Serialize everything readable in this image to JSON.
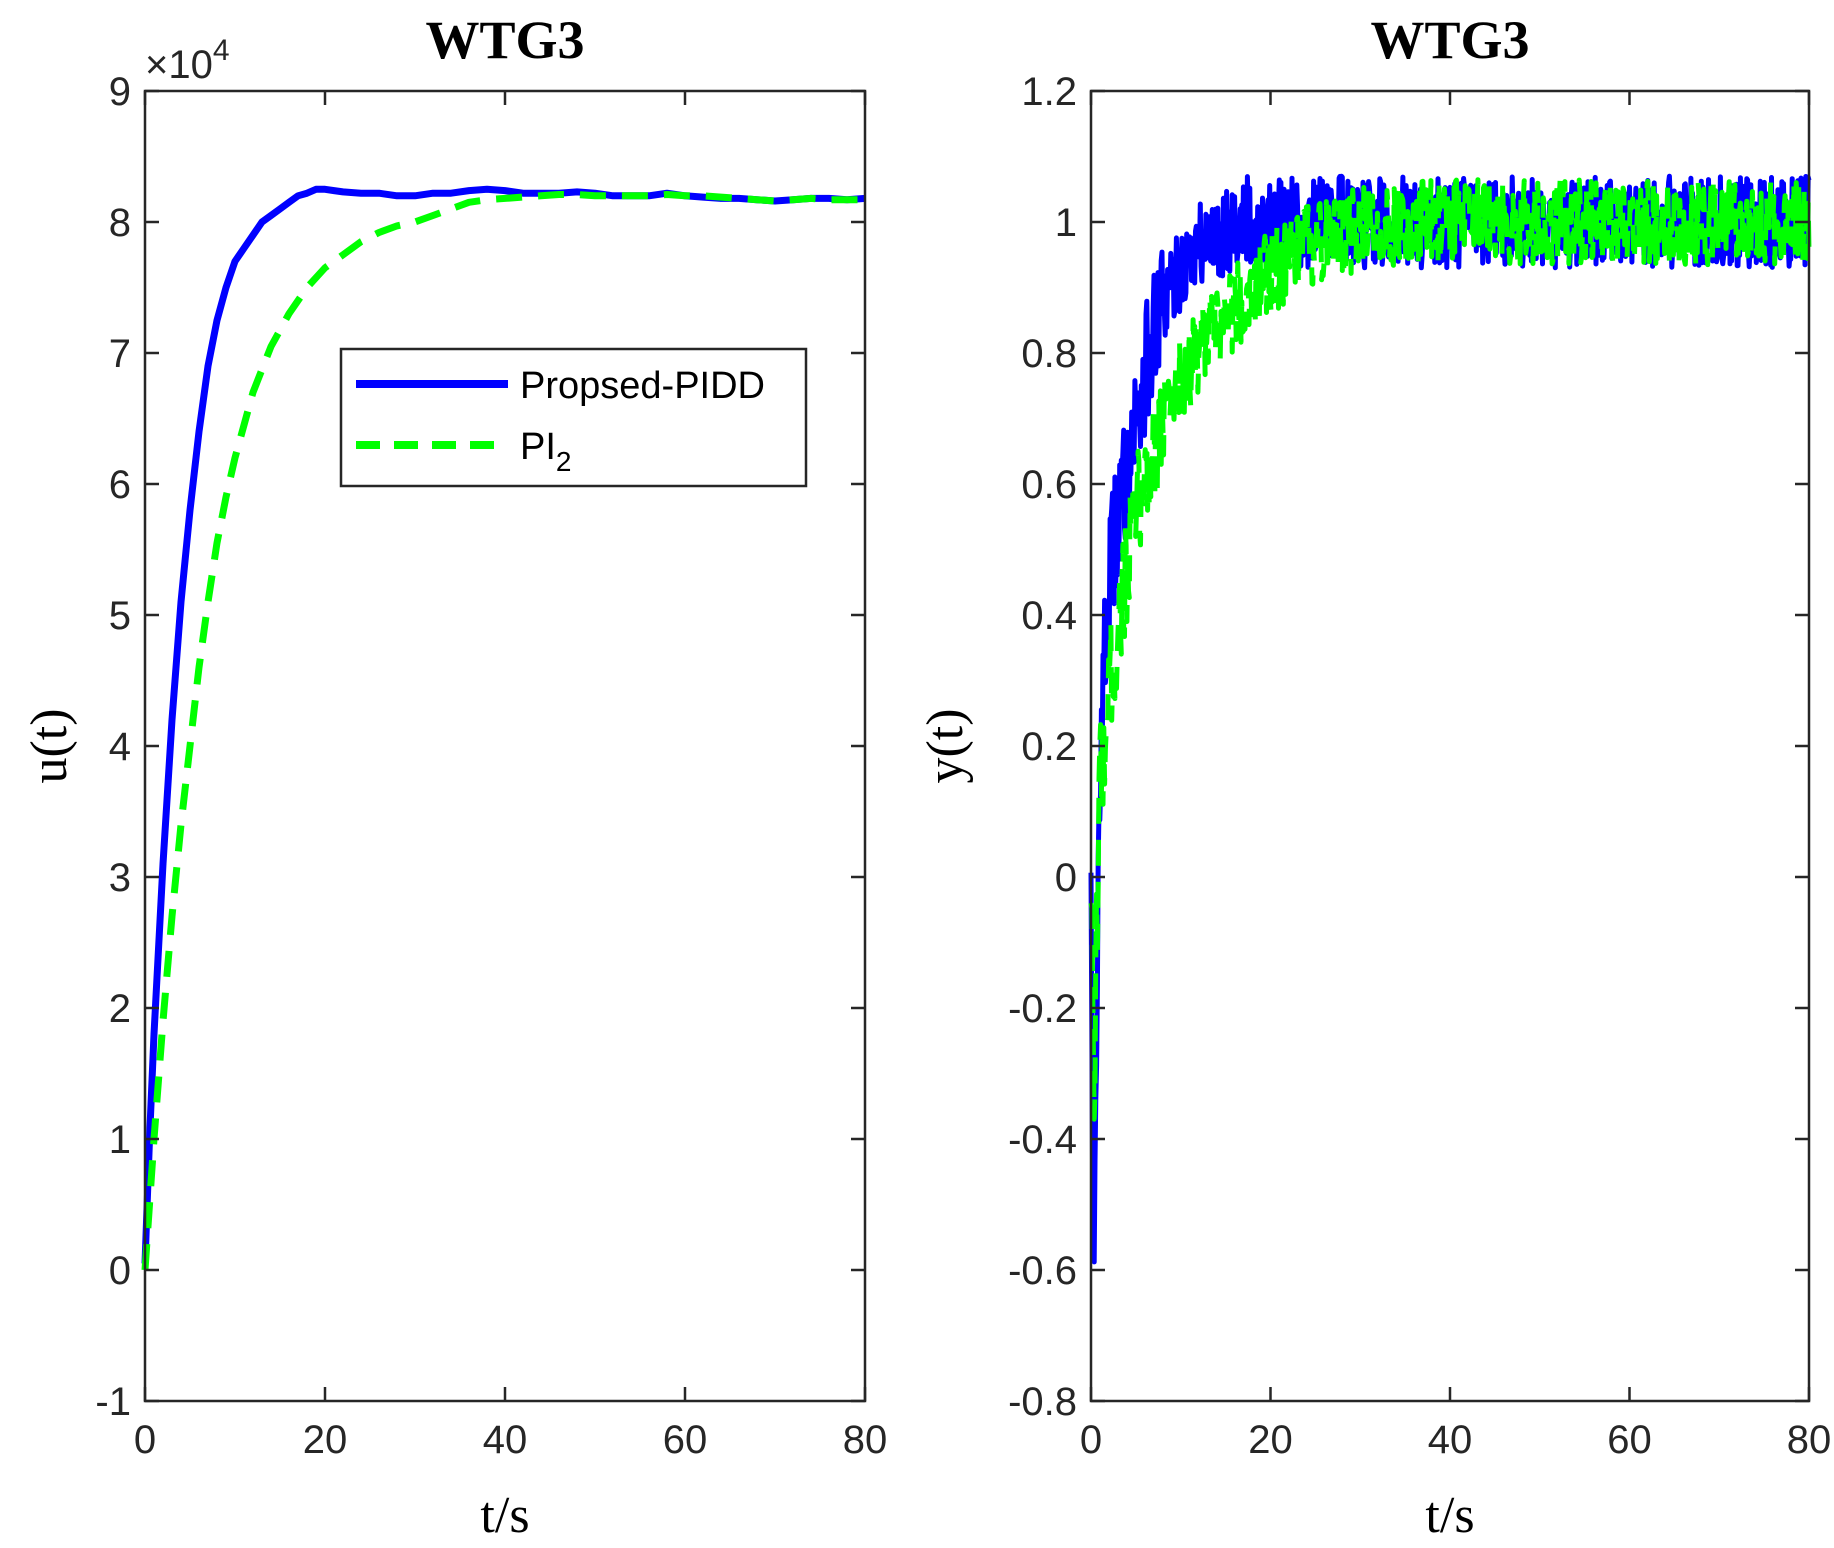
{
  "chart_data": [
    {
      "type": "line",
      "title": "WTG3",
      "xlabel": "t/s",
      "ylabel": "u(t)",
      "xlim": [
        0,
        80
      ],
      "ylim": [
        -1,
        9
      ],
      "xticks": [
        "0",
        "20",
        "40",
        "60",
        "80"
      ],
      "yticks": [
        "-1",
        "0",
        "1",
        "2",
        "3",
        "4",
        "5",
        "6",
        "7",
        "8",
        "9"
      ],
      "y_multiplier_base": "×10",
      "y_multiplier_exp": "4",
      "legend": {
        "placement": "upper-middle",
        "entries": [
          "Propsed-PIDD",
          "PI"
        ],
        "pi_subscript": "2"
      },
      "series": [
        {
          "name": "Propsed-PIDD",
          "color": "#0000ff",
          "style": "solid",
          "x": [
            0,
            0.5,
            1,
            2,
            3,
            4,
            5,
            6,
            7,
            8,
            9,
            10,
            11,
            12,
            13,
            14,
            15,
            16,
            17,
            18,
            19,
            20,
            21,
            22,
            24,
            26,
            28,
            30,
            32,
            34,
            36,
            38,
            40,
            42,
            44,
            46,
            48,
            50,
            52,
            54,
            56,
            58,
            60,
            62,
            64,
            66,
            68,
            70,
            72,
            74,
            76,
            78,
            80
          ],
          "y": [
            0.05,
            1.0,
            1.8,
            3.1,
            4.2,
            5.1,
            5.8,
            6.4,
            6.9,
            7.25,
            7.5,
            7.7,
            7.8,
            7.9,
            8.0,
            8.05,
            8.1,
            8.15,
            8.2,
            8.22,
            8.25,
            8.25,
            8.24,
            8.23,
            8.22,
            8.22,
            8.2,
            8.2,
            8.22,
            8.22,
            8.24,
            8.25,
            8.24,
            8.22,
            8.22,
            8.22,
            8.23,
            8.22,
            8.2,
            8.2,
            8.2,
            8.22,
            8.2,
            8.19,
            8.18,
            8.18,
            8.17,
            8.16,
            8.17,
            8.18,
            8.18,
            8.17,
            8.18
          ]
        },
        {
          "name": "PI",
          "color": "#00ff00",
          "style": "dashed",
          "x": [
            0,
            0.5,
            1,
            2,
            3,
            4,
            5,
            6,
            7,
            8,
            9,
            10,
            12,
            14,
            16,
            18,
            20,
            22,
            24,
            26,
            28,
            30,
            32,
            34,
            36,
            38,
            40,
            42,
            44,
            46,
            48,
            50,
            52,
            54,
            56,
            58,
            60,
            62,
            64,
            66,
            68,
            70,
            72,
            74,
            76,
            78,
            80
          ],
          "y": [
            0.0,
            0.5,
            1.0,
            1.9,
            2.7,
            3.4,
            4.0,
            4.6,
            5.1,
            5.55,
            5.9,
            6.2,
            6.7,
            7.05,
            7.3,
            7.5,
            7.65,
            7.75,
            7.85,
            7.92,
            7.97,
            8.0,
            8.05,
            8.1,
            8.15,
            8.17,
            8.18,
            8.19,
            8.2,
            8.21,
            8.21,
            8.2,
            8.2,
            8.2,
            8.2,
            8.21,
            8.2,
            8.2,
            8.19,
            8.18,
            8.17,
            8.16,
            8.17,
            8.18,
            8.17,
            8.17,
            8.17
          ]
        }
      ]
    },
    {
      "type": "line",
      "title": "WTG3",
      "xlabel": "t/s",
      "ylabel": "y(t)",
      "xlim": [
        0,
        80
      ],
      "ylim": [
        -0.8,
        1.2
      ],
      "xticks": [
        "0",
        "20",
        "40",
        "60",
        "80"
      ],
      "yticks": [
        "-0.8",
        "-0.6",
        "-0.4",
        "-0.2",
        "0",
        "0.2",
        "0.4",
        "0.6",
        "0.8",
        "1",
        "1.2"
      ],
      "series": [
        {
          "name": "Propsed-PIDD",
          "color": "#0000ff",
          "style": "solid",
          "x": [
            0,
            0.3,
            0.6,
            1,
            2,
            3,
            4,
            5,
            6,
            7,
            8,
            9,
            10,
            12,
            14,
            16,
            18,
            20,
            22,
            24,
            26,
            28,
            30,
            35,
            40,
            45,
            50,
            55,
            60,
            65,
            70,
            75,
            80
          ],
          "y": [
            0.05,
            -0.7,
            -0.3,
            0.2,
            0.45,
            0.55,
            0.62,
            0.7,
            0.77,
            0.82,
            0.87,
            0.9,
            0.93,
            0.96,
            0.98,
            1.0,
            1.0,
            1.0,
            1.0,
            1.0,
            1.0,
            1.0,
            1.0,
            1.0,
            1.0,
            1.0,
            1.0,
            1.0,
            1.0,
            1.0,
            1.0,
            1.0,
            1.0
          ],
          "noise_amplitude": 0.07
        },
        {
          "name": "PI",
          "color": "#00ff00",
          "style": "dashed",
          "x": [
            0,
            0.3,
            0.6,
            1,
            2,
            3,
            4,
            5,
            6,
            7,
            8,
            9,
            10,
            12,
            14,
            16,
            18,
            20,
            22,
            24,
            26,
            28,
            30,
            35,
            40,
            45,
            50,
            55,
            60,
            65,
            70,
            75,
            80
          ],
          "y": [
            0.0,
            -0.4,
            -0.1,
            0.15,
            0.28,
            0.38,
            0.47,
            0.55,
            0.61,
            0.66,
            0.7,
            0.73,
            0.76,
            0.8,
            0.84,
            0.87,
            0.9,
            0.92,
            0.94,
            0.96,
            0.97,
            0.98,
            0.99,
            1.0,
            1.0,
            1.0,
            1.0,
            1.0,
            1.0,
            1.0,
            1.0,
            1.0,
            1.0
          ],
          "noise_amplitude": 0.065
        }
      ]
    }
  ]
}
